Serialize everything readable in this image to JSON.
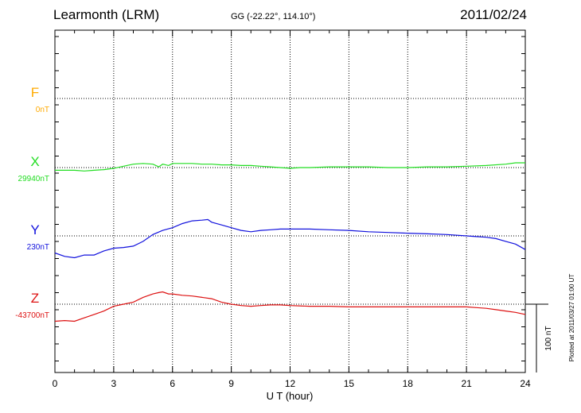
{
  "header": {
    "station": "Learmonth (LRM)",
    "coords": "GG (-22.22°, 114.10°)",
    "date": "2011/02/24"
  },
  "plotted_note": "Plotted at 2011/03/27 01:00 UT",
  "chart_data": {
    "type": "line",
    "title": "Learmonth (LRM)",
    "xlabel": "U T (hour)",
    "ylabel": "",
    "xlim": [
      0,
      24
    ],
    "x_ticks": [
      0,
      3,
      6,
      9,
      12,
      15,
      18,
      21,
      24
    ],
    "grid": true,
    "scale_bar": {
      "label": "100 nT",
      "value_nT": 100
    },
    "series": [
      {
        "name": "F",
        "baseline": "0nT",
        "baseline_value": 0,
        "color": "#ffaa00",
        "x": [],
        "values": []
      },
      {
        "name": "X",
        "baseline": "29940nT",
        "baseline_value": 29940,
        "color": "#22dd22",
        "x": [
          0,
          0.5,
          1,
          1.5,
          2,
          2.5,
          3,
          3.5,
          4,
          4.5,
          5,
          5.3,
          5.5,
          5.8,
          6,
          6.5,
          7,
          7.5,
          8,
          8.5,
          9,
          9.5,
          10,
          10.5,
          11,
          11.5,
          12,
          12.5,
          13,
          14,
          15,
          16,
          17,
          18,
          19,
          20,
          21,
          22,
          23,
          23.5,
          24
        ],
        "values": [
          -4,
          -4,
          -4,
          -5,
          -4,
          -3,
          -1,
          2,
          5,
          6,
          5,
          1,
          5,
          3,
          6,
          6,
          6,
          5,
          5,
          4,
          4,
          3,
          3,
          2,
          1,
          0,
          -1,
          0,
          0,
          1,
          1,
          1,
          0,
          0,
          1,
          1,
          2,
          3,
          5,
          7,
          7
        ]
      },
      {
        "name": "Y",
        "baseline": "230nT",
        "baseline_value": 230,
        "color": "#1111dd",
        "x": [
          0,
          0.5,
          1,
          1.5,
          2,
          2.5,
          3,
          3.5,
          4,
          4.5,
          5,
          5.5,
          6,
          6.5,
          7,
          7.5,
          7.8,
          8,
          8.5,
          9,
          9.5,
          10,
          10.5,
          11,
          11.5,
          12,
          13,
          14,
          15,
          16,
          17,
          18,
          19,
          20,
          21,
          21.5,
          22,
          22.5,
          23,
          23.5,
          24
        ],
        "values": [
          -25,
          -30,
          -32,
          -28,
          -28,
          -22,
          -18,
          -17,
          -15,
          -8,
          2,
          8,
          12,
          18,
          22,
          23,
          24,
          20,
          16,
          12,
          8,
          6,
          8,
          9,
          10,
          10,
          10,
          9,
          8,
          6,
          5,
          4,
          3,
          2,
          0,
          -1,
          -2,
          -4,
          -8,
          -12,
          -20
        ]
      },
      {
        "name": "Z",
        "baseline": "-43700nT",
        "baseline_value": -43700,
        "color": "#dd1111",
        "x": [
          0,
          0.5,
          1,
          1.5,
          2,
          2.5,
          3,
          3.5,
          4,
          4.5,
          5,
          5.3,
          5.5,
          5.8,
          6,
          6.5,
          7,
          7.5,
          8,
          8.5,
          9,
          9.5,
          10,
          10.5,
          11,
          11.5,
          12,
          13,
          14,
          15,
          16,
          17,
          18,
          19,
          20,
          21,
          21.5,
          22,
          22.5,
          23,
          23.5,
          24
        ],
        "values": [
          -25,
          -24,
          -25,
          -20,
          -15,
          -10,
          -3,
          0,
          3,
          10,
          15,
          17,
          18,
          15,
          15,
          13,
          12,
          10,
          8,
          3,
          0,
          -2,
          -3,
          -2,
          -1,
          -1,
          -2,
          -3,
          -3,
          -4,
          -4,
          -4,
          -4,
          -4,
          -4,
          -4,
          -5,
          -6,
          -8,
          -10,
          -12,
          -15
        ]
      }
    ]
  }
}
